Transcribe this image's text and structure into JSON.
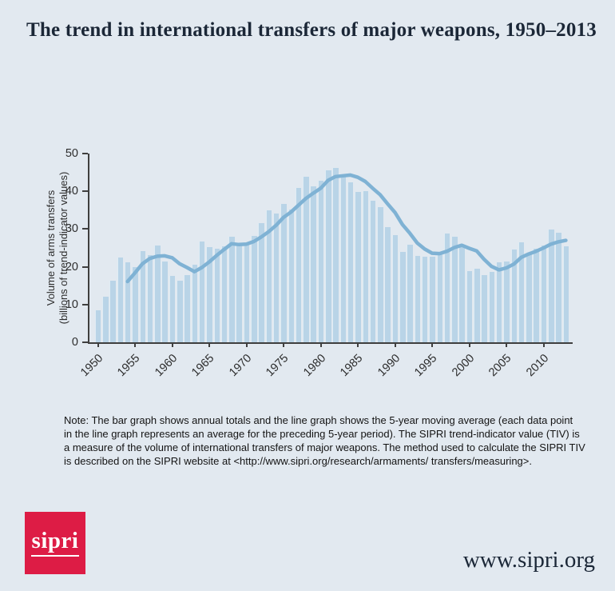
{
  "page": {
    "title": "The trend in international transfers of major weapons, 1950–2013",
    "footer_url": "www.sipri.org",
    "logo_text": "sipri",
    "note_lines": [
      "Note: The bar graph shows annual totals and the line graph shows the 5-year moving average (each data point",
      "in the line graph represents an average for the preceding 5-year period). The SIPRI trend-indicator value (TIV) is",
      "a measure of the volume of international transfers of major weapons. The method used to calculate the SIPRI TIV",
      "is described on the SIPRI website at <http://www.sipri.org/research/armaments/ transfers/measuring>."
    ]
  },
  "colors": {
    "background": "#e2e9f0",
    "bar_fill": "#b9d4e7",
    "line": "#7fb2d4",
    "axis": "#3f3f3f",
    "title_text": "#1b2737",
    "note_text": "#141414",
    "logo_red": "#dd1c45",
    "logo_text": "#ffffff"
  },
  "chart_data": {
    "type": "bar",
    "title": "The trend in international transfers of major weapons, 1950–2013",
    "xlabel": "",
    "ylabel": "Volume of arms transfers (billions of trend-indicator values)",
    "ylabel_lines": [
      "Volume of arms transfers",
      "(billions of trend-indicator values)"
    ],
    "ylim": [
      0,
      50
    ],
    "yticks": [
      0,
      10,
      20,
      30,
      40,
      50
    ],
    "xtick_labels": [
      1950,
      1955,
      1960,
      1965,
      1970,
      1975,
      1980,
      1985,
      1990,
      1995,
      2000,
      2005,
      2010
    ],
    "grid": false,
    "legend_position": "none",
    "years": [
      1950,
      1951,
      1952,
      1953,
      1954,
      1955,
      1956,
      1957,
      1958,
      1959,
      1960,
      1961,
      1962,
      1963,
      1964,
      1965,
      1966,
      1967,
      1968,
      1969,
      1970,
      1971,
      1972,
      1973,
      1974,
      1975,
      1976,
      1977,
      1978,
      1979,
      1980,
      1981,
      1982,
      1983,
      1984,
      1985,
      1986,
      1987,
      1988,
      1989,
      1990,
      1991,
      1992,
      1993,
      1994,
      1995,
      1996,
      1997,
      1998,
      1999,
      2000,
      2001,
      2002,
      2003,
      2004,
      2005,
      2006,
      2007,
      2008,
      2009,
      2010,
      2011,
      2012,
      2013
    ],
    "series": [
      {
        "name": "Annual totals",
        "type": "bar",
        "values": [
          8.4,
          12.0,
          16.3,
          22.4,
          21.2,
          20.0,
          24.2,
          23.1,
          25.7,
          21.4,
          17.5,
          16.3,
          17.9,
          20.5,
          26.7,
          25.3,
          24.8,
          25.5,
          28.0,
          25.8,
          26.1,
          28.1,
          31.6,
          34.9,
          34.1,
          36.6,
          35.1,
          40.9,
          43.8,
          41.3,
          42.9,
          45.6,
          46.2,
          44.3,
          42.4,
          39.8,
          40.1,
          37.4,
          35.9,
          30.5,
          28.3,
          24.0,
          25.8,
          22.9,
          22.7,
          22.7,
          23.3,
          28.9,
          28.0,
          25.6,
          18.9,
          19.5,
          17.8,
          18.7,
          21.2,
          21.4,
          24.5,
          26.5,
          23.4,
          24.8,
          25.6,
          29.9,
          29.1,
          25.5
        ]
      },
      {
        "name": "5-year moving average (each point is the average of the preceding 5-year period)",
        "type": "line",
        "start_year": 1954,
        "values": [
          16.1,
          18.4,
          20.8,
          22.2,
          22.8,
          22.9,
          22.4,
          20.8,
          19.8,
          18.7,
          19.8,
          21.3,
          23.0,
          24.6,
          26.1,
          25.9,
          26.0,
          26.7,
          27.9,
          29.3,
          31.0,
          33.1,
          34.5,
          36.3,
          38.1,
          39.5,
          40.8,
          42.9,
          43.9,
          44.1,
          44.3,
          43.7,
          42.6,
          40.8,
          39.1,
          36.7,
          34.4,
          31.2,
          28.9,
          26.3,
          24.7,
          23.6,
          23.5,
          24.1,
          25.1,
          25.7,
          24.9,
          24.2,
          22.0,
          20.1,
          19.2,
          19.7,
          20.7,
          22.5,
          23.4,
          24.1,
          25.0,
          26.0,
          26.6,
          27.0
        ]
      }
    ]
  }
}
